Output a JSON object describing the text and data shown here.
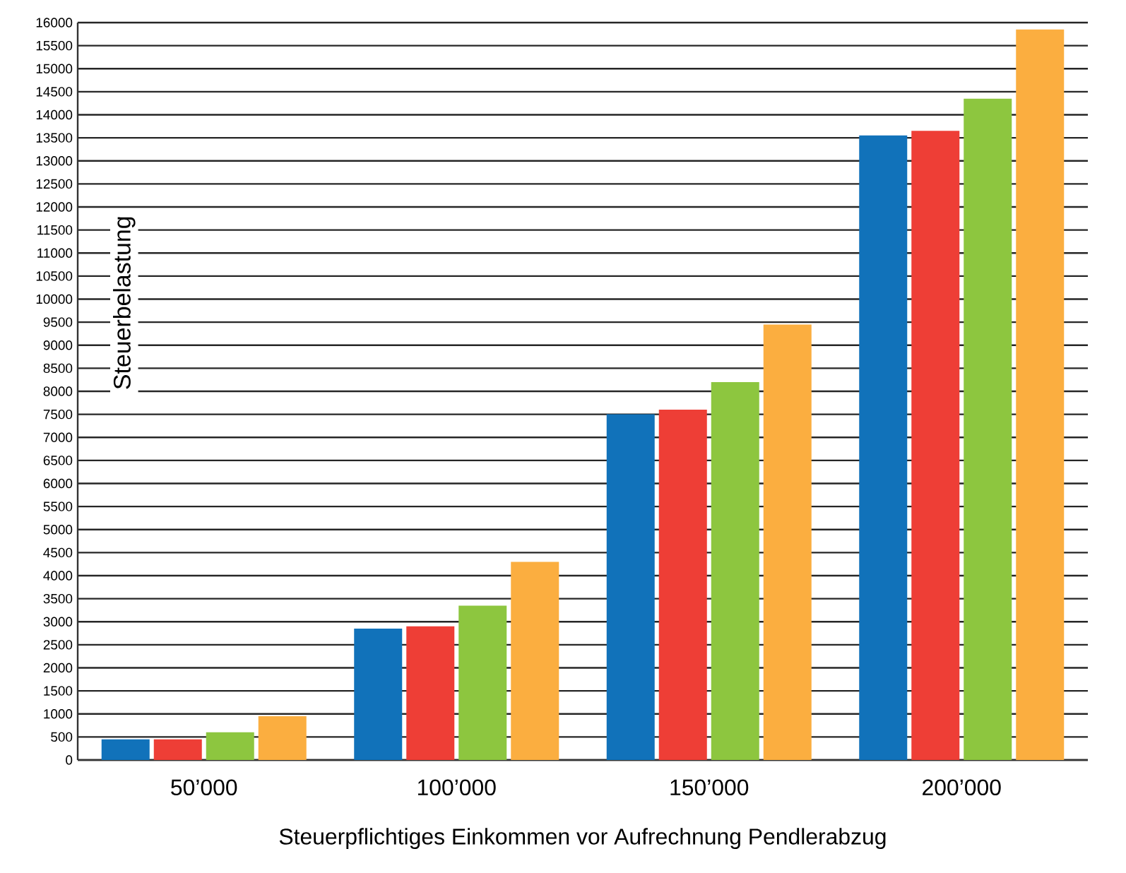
{
  "chart_data": {
    "type": "bar",
    "xlabel": "Steuerpflichtiges Einkommen vor Aufrechnung Pendlerabzug",
    "ylabel": "Steuerbelastung",
    "categories": [
      "50’000",
      "100’000",
      "150’000",
      "200’000"
    ],
    "series": [
      {
        "color": "#1172ba",
        "values": [
          450,
          2850,
          7500,
          13550
        ]
      },
      {
        "color": "#ee3e36",
        "values": [
          450,
          2900,
          7600,
          13650
        ]
      },
      {
        "color": "#8dc63f",
        "values": [
          600,
          3350,
          8200,
          14350
        ]
      },
      {
        "color": "#fbae40",
        "values": [
          950,
          4300,
          9450,
          15850
        ]
      }
    ],
    "ylim": [
      0,
      16000
    ],
    "yticks": [
      0,
      500,
      1000,
      1500,
      2000,
      2500,
      3000,
      3500,
      4000,
      4500,
      5000,
      5500,
      6000,
      6500,
      7000,
      7500,
      8000,
      8500,
      9000,
      9500,
      10000,
      10500,
      11000,
      11500,
      12000,
      12500,
      13000,
      13500,
      14000,
      14500,
      15000,
      15500,
      16000
    ],
    "grid": "y"
  }
}
